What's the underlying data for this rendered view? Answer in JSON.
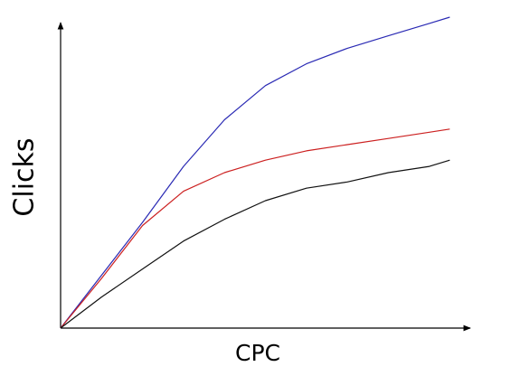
{
  "chart_data": {
    "type": "line",
    "x_label": "CPC",
    "y_label": "Clicks",
    "x": [
      0,
      10,
      20,
      30,
      40,
      50,
      60,
      70,
      80,
      90,
      95
    ],
    "xlim": [
      0,
      100
    ],
    "ylim": [
      0,
      100
    ],
    "series": [
      {
        "color": "#2a2ab4",
        "values": [
          0,
          17,
          34,
          52,
          67,
          78,
          85,
          90,
          94,
          98,
          100
        ]
      },
      {
        "color": "#cc2020",
        "values": [
          0,
          16,
          33,
          44,
          50,
          54,
          57,
          59,
          61,
          63,
          64
        ]
      },
      {
        "color": "#111111",
        "values": [
          0,
          10,
          19,
          28,
          35,
          41,
          45,
          47,
          50,
          52,
          54
        ]
      }
    ]
  }
}
